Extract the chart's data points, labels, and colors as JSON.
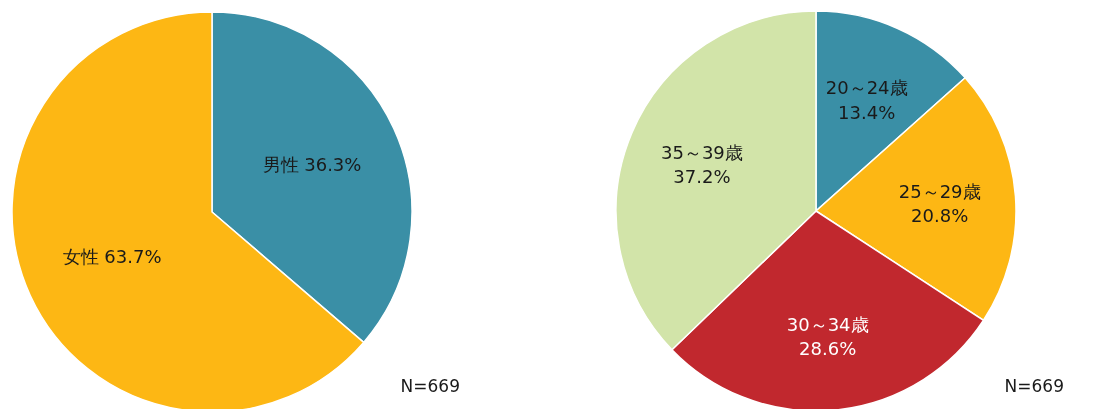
{
  "chart_data": [
    {
      "type": "pie",
      "categories": [
        "男性",
        "女性"
      ],
      "values": [
        36.3,
        63.7
      ],
      "colors": [
        "#3a8fa6",
        "#fdb714"
      ],
      "value_labels": [
        "36.3%",
        "63.7%"
      ],
      "annotations": [
        "N=669"
      ]
    },
    {
      "type": "pie",
      "categories": [
        "20～24歳",
        "25～29歳",
        "30～34歳",
        "35～39歳"
      ],
      "values": [
        13.4,
        20.8,
        28.6,
        37.2
      ],
      "colors": [
        "#3a8fa6",
        "#fdb714",
        "#c1282e",
        "#d2e4a9"
      ],
      "value_labels": [
        "13.4%",
        "20.8%",
        "28.6%",
        "37.2%"
      ],
      "annotations": [
        "N=669"
      ]
    }
  ]
}
